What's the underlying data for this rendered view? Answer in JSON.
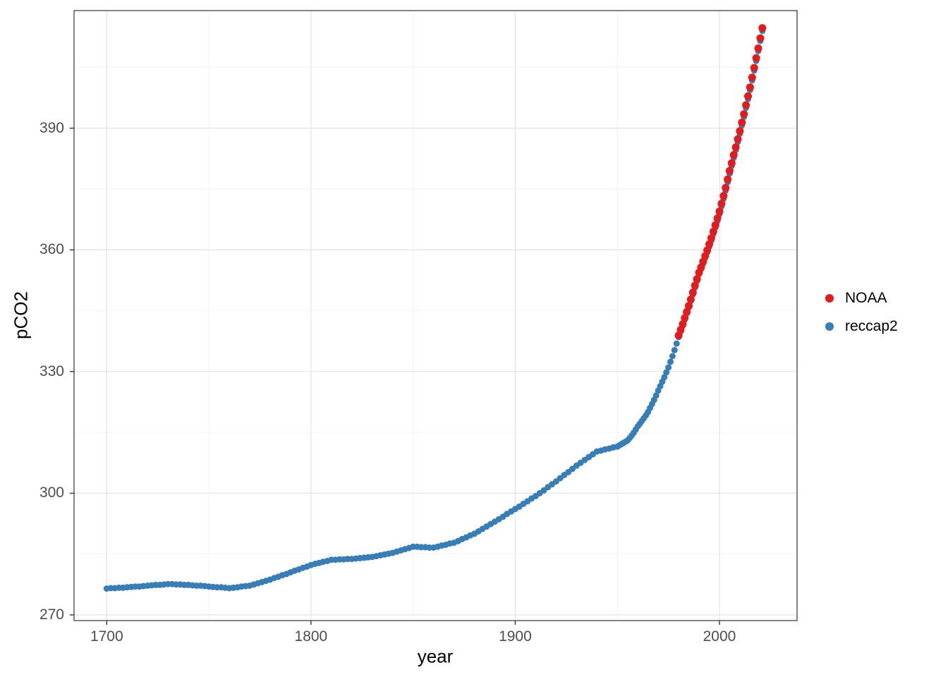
{
  "figure": {
    "background": "#ffffff",
    "panel_background": "#ffffff",
    "panel_border": "#333333"
  },
  "chart_data": {
    "type": "scatter",
    "title": "",
    "xlabel": "year",
    "ylabel": "pCO2",
    "xlim": [
      1684,
      2038
    ],
    "ylim": [
      268.6,
      419.0
    ],
    "grid": true,
    "legend_position": "right",
    "x_major_ticks": [
      1700,
      1800,
      1900,
      2000
    ],
    "x_tick_labels": [
      "1700",
      "1800",
      "1900",
      "2000"
    ],
    "x_minor_ticks": [
      1750,
      1850,
      1950
    ],
    "y_major_ticks": [
      270,
      300,
      330,
      360,
      390
    ],
    "y_tick_labels": [
      "270",
      "300",
      "330",
      "360",
      "390"
    ],
    "y_minor_ticks": [
      285,
      315,
      345,
      375,
      405
    ],
    "grid_major_color": "#e5e5e5",
    "grid_minor_color": "#f2f2f2",
    "series": [
      {
        "name": "reccap2",
        "color": "#377EB8",
        "point_radius": 4.5,
        "points": [
          [
            1700,
            276.5
          ],
          [
            1702,
            276.6
          ],
          [
            1704,
            276.6
          ],
          [
            1706,
            276.7
          ],
          [
            1708,
            276.7
          ],
          [
            1710,
            276.8
          ],
          [
            1712,
            276.9
          ],
          [
            1714,
            277.0
          ],
          [
            1716,
            277.0
          ],
          [
            1718,
            277.1
          ],
          [
            1720,
            277.2
          ],
          [
            1722,
            277.3
          ],
          [
            1724,
            277.4
          ],
          [
            1726,
            277.4
          ],
          [
            1728,
            277.5
          ],
          [
            1730,
            277.6
          ],
          [
            1732,
            277.6
          ],
          [
            1734,
            277.5
          ],
          [
            1736,
            277.5
          ],
          [
            1738,
            277.4
          ],
          [
            1740,
            277.4
          ],
          [
            1742,
            277.3
          ],
          [
            1744,
            277.2
          ],
          [
            1746,
            277.2
          ],
          [
            1748,
            277.1
          ],
          [
            1750,
            277.0
          ],
          [
            1752,
            276.9
          ],
          [
            1754,
            276.8
          ],
          [
            1756,
            276.8
          ],
          [
            1758,
            276.7
          ],
          [
            1760,
            276.6
          ],
          [
            1762,
            276.7
          ],
          [
            1764,
            276.8
          ],
          [
            1766,
            277.0
          ],
          [
            1768,
            277.1
          ],
          [
            1770,
            277.2
          ],
          [
            1772,
            277.5
          ],
          [
            1774,
            277.8
          ],
          [
            1776,
            278.1
          ],
          [
            1778,
            278.4
          ],
          [
            1780,
            278.7
          ],
          [
            1782,
            279.1
          ],
          [
            1784,
            279.4
          ],
          [
            1786,
            279.8
          ],
          [
            1788,
            280.1
          ],
          [
            1790,
            280.5
          ],
          [
            1792,
            280.9
          ],
          [
            1794,
            281.2
          ],
          [
            1796,
            281.6
          ],
          [
            1798,
            281.9
          ],
          [
            1800,
            282.3
          ],
          [
            1802,
            282.6
          ],
          [
            1804,
            282.8
          ],
          [
            1806,
            283.1
          ],
          [
            1808,
            283.3
          ],
          [
            1810,
            283.6
          ],
          [
            1812,
            283.6
          ],
          [
            1814,
            283.7
          ],
          [
            1816,
            283.7
          ],
          [
            1818,
            283.8
          ],
          [
            1820,
            283.8
          ],
          [
            1822,
            283.9
          ],
          [
            1824,
            284.0
          ],
          [
            1826,
            284.1
          ],
          [
            1828,
            284.2
          ],
          [
            1830,
            284.3
          ],
          [
            1832,
            284.5
          ],
          [
            1834,
            284.7
          ],
          [
            1836,
            284.9
          ],
          [
            1838,
            285.1
          ],
          [
            1840,
            285.3
          ],
          [
            1842,
            285.6
          ],
          [
            1844,
            285.9
          ],
          [
            1846,
            286.2
          ],
          [
            1848,
            286.5
          ],
          [
            1850,
            286.8
          ],
          [
            1852,
            286.8
          ],
          [
            1854,
            286.7
          ],
          [
            1856,
            286.7
          ],
          [
            1858,
            286.6
          ],
          [
            1860,
            286.6
          ],
          [
            1862,
            286.8
          ],
          [
            1864,
            287.1
          ],
          [
            1866,
            287.3
          ],
          [
            1868,
            287.6
          ],
          [
            1870,
            287.8
          ],
          [
            1872,
            288.2
          ],
          [
            1874,
            288.7
          ],
          [
            1876,
            289.1
          ],
          [
            1878,
            289.6
          ],
          [
            1880,
            290.0
          ],
          [
            1882,
            290.6
          ],
          [
            1884,
            291.2
          ],
          [
            1886,
            291.8
          ],
          [
            1888,
            292.4
          ],
          [
            1890,
            293.0
          ],
          [
            1892,
            293.6
          ],
          [
            1894,
            294.2
          ],
          [
            1896,
            294.9
          ],
          [
            1898,
            295.5
          ],
          [
            1900,
            296.1
          ],
          [
            1902,
            296.7
          ],
          [
            1904,
            297.4
          ],
          [
            1906,
            298.0
          ],
          [
            1908,
            298.7
          ],
          [
            1910,
            299.3
          ],
          [
            1912,
            300.0
          ],
          [
            1914,
            300.7
          ],
          [
            1916,
            301.5
          ],
          [
            1918,
            302.2
          ],
          [
            1920,
            302.9
          ],
          [
            1922,
            303.7
          ],
          [
            1924,
            304.5
          ],
          [
            1926,
            305.2
          ],
          [
            1928,
            306.0
          ],
          [
            1930,
            306.8
          ],
          [
            1932,
            307.5
          ],
          [
            1934,
            308.2
          ],
          [
            1936,
            308.9
          ],
          [
            1938,
            309.6
          ],
          [
            1940,
            310.3
          ],
          [
            1942,
            310.5
          ],
          [
            1944,
            310.8
          ],
          [
            1946,
            311.0
          ],
          [
            1948,
            311.3
          ],
          [
            1950,
            311.5
          ],
          [
            1951,
            311.8
          ],
          [
            1952,
            312.1
          ],
          [
            1953,
            312.4
          ],
          [
            1954,
            312.7
          ],
          [
            1955,
            313.0
          ],
          [
            1956,
            313.6
          ],
          [
            1957,
            314.2
          ],
          [
            1958,
            314.9
          ],
          [
            1959,
            315.7
          ],
          [
            1960,
            316.5
          ],
          [
            1961,
            317.1
          ],
          [
            1962,
            317.8
          ],
          [
            1963,
            318.5
          ],
          [
            1964,
            319.2
          ],
          [
            1965,
            320.0
          ],
          [
            1966,
            321.0
          ],
          [
            1967,
            322.0
          ],
          [
            1968,
            323.0
          ],
          [
            1969,
            324.1
          ],
          [
            1970,
            325.3
          ],
          [
            1971,
            326.4
          ],
          [
            1972,
            327.5
          ],
          [
            1973,
            328.6
          ],
          [
            1974,
            329.8
          ],
          [
            1975,
            331.0
          ],
          [
            1976,
            332.4
          ],
          [
            1977,
            333.8
          ],
          [
            1978,
            335.3
          ],
          [
            1979,
            336.9
          ],
          [
            1980,
            338.5
          ],
          [
            1981,
            339.9
          ],
          [
            1982,
            341.3
          ],
          [
            1983,
            342.8
          ],
          [
            1984,
            344.3
          ],
          [
            1985,
            345.8
          ],
          [
            1986,
            347.4
          ],
          [
            1987,
            349.0
          ],
          [
            1988,
            350.7
          ],
          [
            1989,
            352.3
          ],
          [
            1990,
            354.0
          ],
          [
            1991,
            355.3
          ],
          [
            1992,
            356.6
          ],
          [
            1993,
            358.0
          ],
          [
            1994,
            359.4
          ],
          [
            1995,
            360.8
          ],
          [
            1996,
            362.3
          ],
          [
            1997,
            363.9
          ],
          [
            1998,
            365.5
          ],
          [
            1999,
            367.1
          ],
          [
            2000,
            368.8
          ],
          [
            2001,
            370.7
          ],
          [
            2002,
            372.6
          ],
          [
            2003,
            374.6
          ],
          [
            2004,
            376.7
          ],
          [
            2005,
            378.8
          ],
          [
            2006,
            380.7
          ],
          [
            2007,
            382.7
          ],
          [
            2008,
            384.6
          ],
          [
            2009,
            386.6
          ],
          [
            2010,
            388.6
          ],
          [
            2011,
            390.7
          ],
          [
            2012,
            392.8
          ],
          [
            2013,
            395.0
          ],
          [
            2014,
            397.2
          ],
          [
            2015,
            399.4
          ],
          [
            2016,
            401.8
          ],
          [
            2017,
            404.2
          ],
          [
            2018,
            406.6
          ],
          [
            2019,
            409.0
          ],
          [
            2020,
            411.5
          ],
          [
            2021,
            414.0
          ]
        ]
      },
      {
        "name": "NOAA",
        "color": "#E41A1C",
        "point_radius": 5.5,
        "points": [
          [
            1980,
            338.9
          ],
          [
            1981,
            340.3
          ],
          [
            1982,
            341.7
          ],
          [
            1983,
            343.2
          ],
          [
            1984,
            344.7
          ],
          [
            1985,
            346.2
          ],
          [
            1986,
            347.8
          ],
          [
            1987,
            349.5
          ],
          [
            1988,
            351.2
          ],
          [
            1989,
            352.8
          ],
          [
            1990,
            354.4
          ],
          [
            1991,
            355.7
          ],
          [
            1992,
            357.1
          ],
          [
            1993,
            358.5
          ],
          [
            1994,
            359.9
          ],
          [
            1995,
            361.4
          ],
          [
            1996,
            362.9
          ],
          [
            1997,
            364.5
          ],
          [
            1998,
            366.1
          ],
          [
            1999,
            367.8
          ],
          [
            2000,
            369.5
          ],
          [
            2001,
            371.4
          ],
          [
            2002,
            373.3
          ],
          [
            2003,
            375.3
          ],
          [
            2004,
            377.4
          ],
          [
            2005,
            379.5
          ],
          [
            2006,
            381.4
          ],
          [
            2007,
            383.4
          ],
          [
            2008,
            385.3
          ],
          [
            2009,
            387.3
          ],
          [
            2010,
            389.3
          ],
          [
            2011,
            391.4
          ],
          [
            2012,
            393.5
          ],
          [
            2013,
            395.7
          ],
          [
            2014,
            397.9
          ],
          [
            2015,
            400.1
          ],
          [
            2016,
            402.5
          ],
          [
            2017,
            404.9
          ],
          [
            2018,
            407.3
          ],
          [
            2019,
            409.7
          ],
          [
            2020,
            412.2
          ],
          [
            2021,
            414.7
          ]
        ]
      }
    ]
  },
  "legend": {
    "entries": [
      {
        "label": "NOAA",
        "color": "#E41A1C"
      },
      {
        "label": "reccap2",
        "color": "#377EB8"
      }
    ]
  }
}
